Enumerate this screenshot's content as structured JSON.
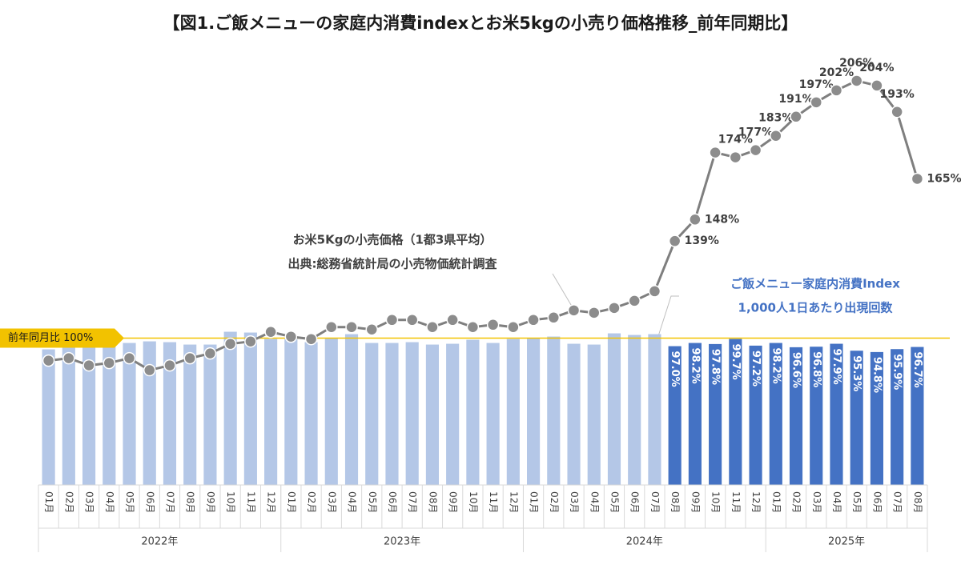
{
  "chart_data": {
    "type": "bar_line",
    "title": "【図1.ご飯メニューの家庭内消費indexとお米5kgの小売り価格推移_前年同期比】",
    "categories": [
      "01月",
      "02月",
      "03月",
      "04月",
      "05月",
      "06月",
      "07月",
      "08月",
      "09月",
      "10月",
      "11月",
      "12月",
      "01月",
      "02月",
      "03月",
      "04月",
      "05月",
      "06月",
      "07月",
      "08月",
      "09月",
      "10月",
      "11月",
      "12月",
      "01月",
      "02月",
      "03月",
      "04月",
      "05月",
      "06月",
      "07月",
      "08月",
      "09月",
      "10月",
      "11月",
      "12月",
      "01月",
      "02月",
      "03月",
      "04月",
      "05月",
      "06月",
      "07月",
      "08月"
    ],
    "groups": [
      {
        "label": "2022年",
        "span": 12
      },
      {
        "label": "2023年",
        "span": 12
      },
      {
        "label": "2024年",
        "span": 12
      },
      {
        "label": "2025年",
        "span": 8
      }
    ],
    "series": [
      {
        "name": "ご飯メニュー家庭内消費Index",
        "type": "bar",
        "values": [
          95.8,
          97.0,
          97.0,
          97.0,
          98.2,
          98.8,
          98.5,
          97.6,
          97.6,
          102.4,
          102.1,
          99.7,
          99.7,
          98.5,
          100.0,
          101.5,
          98.2,
          98.2,
          98.5,
          97.6,
          97.9,
          99.4,
          98.2,
          99.7,
          100.0,
          100.6,
          97.9,
          97.6,
          101.8,
          101.2,
          101.5,
          97.0,
          98.2,
          97.8,
          99.7,
          97.2,
          98.2,
          96.6,
          96.8,
          97.9,
          95.3,
          94.8,
          95.9,
          96.7
        ],
        "value_labels": [
          null,
          null,
          null,
          null,
          null,
          null,
          null,
          null,
          null,
          null,
          null,
          null,
          null,
          null,
          null,
          null,
          null,
          null,
          null,
          null,
          null,
          null,
          null,
          null,
          null,
          null,
          null,
          null,
          null,
          null,
          null,
          "97.0%",
          "98.2%",
          "97.8%",
          "99.7%",
          "97.2%",
          "98.2%",
          "96.6%",
          "96.8%",
          "97.9%",
          "95.3%",
          "94.8%",
          "95.9%",
          "96.7%"
        ],
        "colors": [
          "#b4c7e7",
          "#b4c7e7",
          "#b4c7e7",
          "#b4c7e7",
          "#b4c7e7",
          "#b4c7e7",
          "#b4c7e7",
          "#b4c7e7",
          "#b4c7e7",
          "#b4c7e7",
          "#b4c7e7",
          "#b4c7e7",
          "#b4c7e7",
          "#b4c7e7",
          "#b4c7e7",
          "#b4c7e7",
          "#b4c7e7",
          "#b4c7e7",
          "#b4c7e7",
          "#b4c7e7",
          "#b4c7e7",
          "#b4c7e7",
          "#b4c7e7",
          "#b4c7e7",
          "#b4c7e7",
          "#b4c7e7",
          "#b4c7e7",
          "#b4c7e7",
          "#b4c7e7",
          "#b4c7e7",
          "#b4c7e7",
          "#4472c4",
          "#4472c4",
          "#4472c4",
          "#4472c4",
          "#4472c4",
          "#4472c4",
          "#4472c4",
          "#4472c4",
          "#4472c4",
          "#4472c4",
          "#4472c4",
          "#4472c4",
          "#4472c4"
        ]
      },
      {
        "name": "お米5Kgの小売価格（1都3県平均）",
        "type": "line",
        "axis": "y2",
        "color": "#7f7f7f",
        "marker_color": "#8c8c8c",
        "values": [
          89,
          90,
          87,
          88,
          90,
          85,
          87,
          90,
          92,
          96,
          97,
          101,
          99,
          98,
          103,
          103,
          102,
          106,
          106,
          103,
          106,
          103,
          104,
          103,
          106,
          107,
          110,
          109,
          111,
          114,
          118,
          139,
          148,
          176,
          174,
          177,
          183,
          191,
          197,
          202,
          206,
          204,
          193,
          165
        ],
        "value_labels": [
          null,
          null,
          null,
          null,
          null,
          null,
          null,
          null,
          null,
          null,
          null,
          null,
          null,
          null,
          null,
          null,
          null,
          null,
          null,
          null,
          null,
          null,
          null,
          null,
          null,
          null,
          null,
          null,
          null,
          null,
          null,
          "139%",
          "148%",
          null,
          "174%",
          "177%",
          "183%",
          "191%",
          "197%",
          "202%",
          "206%",
          "204%",
          "193%",
          "165%"
        ]
      }
    ],
    "ylim": [
      45,
      200
    ],
    "y2lim": [
      37,
      210
    ],
    "reference": {
      "value": 100,
      "label": "前年同月比 100%",
      "color": "#f2c200"
    },
    "annotations": [
      {
        "text": "お米5Kgの小売価格（1都3県平均）",
        "color": "#404040"
      },
      {
        "text": "出典:総務省統計局の小売物価統計調査",
        "color": "#404040"
      },
      {
        "text": "ご飯メニュー家庭内消費Index",
        "color": "#4472c4"
      },
      {
        "text": "1,000人1日あたり出現回数",
        "color": "#4472c4"
      }
    ]
  }
}
